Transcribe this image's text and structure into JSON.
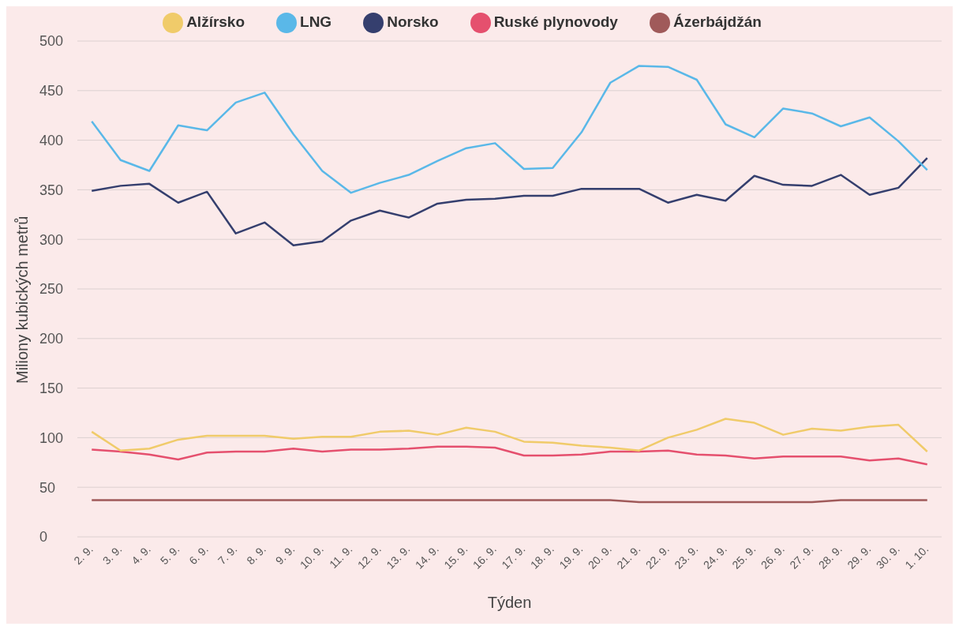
{
  "chart_data": {
    "type": "line",
    "xlabel": "Týden",
    "ylabel": "Miliony kubických metrů",
    "categories": [
      "2. 9.",
      "3. 9.",
      "4. 9.",
      "5. 9.",
      "6. 9.",
      "7. 9.",
      "8. 9.",
      "9. 9.",
      "10. 9.",
      "11. 9.",
      "12. 9.",
      "13. 9.",
      "14. 9.",
      "15. 9.",
      "16. 9.",
      "17. 9.",
      "18. 9.",
      "19. 9.",
      "20. 9.",
      "21. 9.",
      "22. 9.",
      "23. 9.",
      "24. 9.",
      "25. 9.",
      "26. 9.",
      "27. 9.",
      "28. 9.",
      "29. 9.",
      "30. 9.",
      "1. 10."
    ],
    "series": [
      {
        "name": "Ruské plynovody",
        "color": "#e5506e",
        "values": [
          88,
          86,
          83,
          78,
          85,
          86,
          86,
          89,
          86,
          88,
          88,
          89,
          91,
          91,
          90,
          82,
          82,
          83,
          86,
          86,
          87,
          83,
          82,
          79,
          81,
          81,
          81,
          77,
          79,
          73
        ]
      },
      {
        "name": "Norsko",
        "color": "#353f6e",
        "values": [
          349,
          354,
          356,
          337,
          348,
          306,
          317,
          294,
          298,
          319,
          329,
          322,
          336,
          340,
          341,
          344,
          344,
          351,
          351,
          351,
          337,
          345,
          339,
          364,
          355,
          354,
          365,
          345,
          352,
          382
        ]
      },
      {
        "name": "Alžírsko",
        "color": "#f0cb6a",
        "values": [
          106,
          87,
          89,
          98,
          102,
          102,
          102,
          99,
          101,
          101,
          106,
          107,
          103,
          110,
          106,
          96,
          95,
          92,
          90,
          87,
          100,
          108,
          119,
          115,
          103,
          109,
          107,
          111,
          113,
          86
        ]
      },
      {
        "name": "LNG",
        "color": "#5ab8e8",
        "values": [
          419,
          380,
          369,
          415,
          410,
          438,
          448,
          406,
          369,
          347,
          357,
          365,
          379,
          392,
          397,
          371,
          372,
          408,
          458,
          475,
          474,
          461,
          416,
          403,
          432,
          427,
          414,
          423,
          399,
          370
        ]
      },
      {
        "name": "Ázerbájdžán",
        "color": "#a05a5a",
        "values": [
          37,
          37,
          37,
          37,
          37,
          37,
          37,
          37,
          37,
          37,
          37,
          37,
          37,
          37,
          37,
          37,
          37,
          37,
          37,
          35,
          35,
          35,
          35,
          35,
          35,
          35,
          37,
          37,
          37,
          37
        ]
      }
    ],
    "ylim": [
      0,
      500
    ],
    "yticks": [
      0,
      50,
      100,
      150,
      200,
      250,
      300,
      350,
      400,
      450,
      500
    ],
    "grid": "y",
    "legend": "top",
    "marker": "none",
    "line_style": "solid"
  }
}
